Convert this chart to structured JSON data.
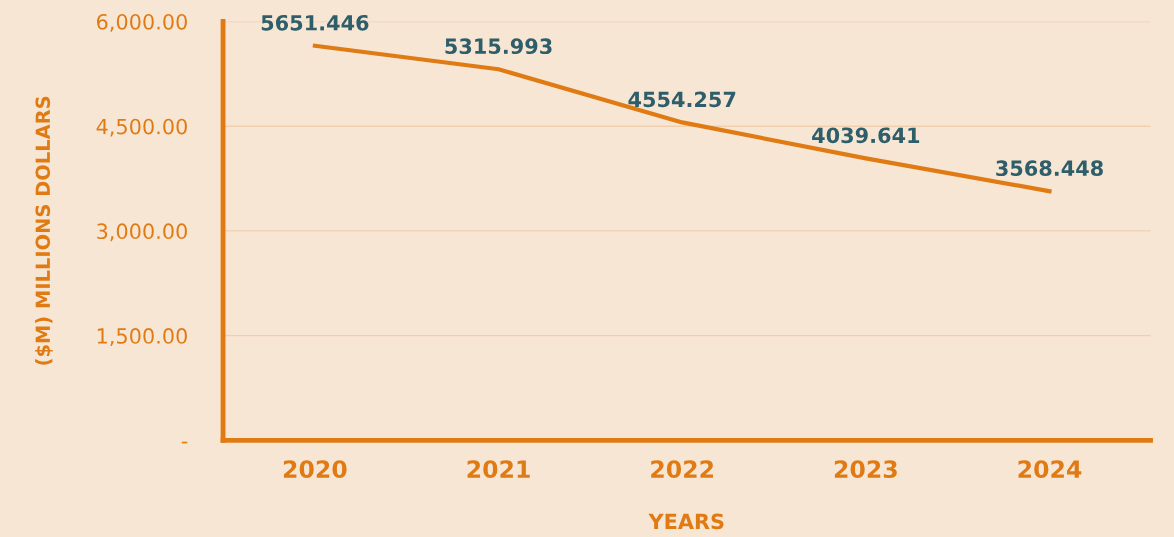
{
  "chart_data": {
    "type": "line",
    "xlabel": "YEARS",
    "ylabel": "($M) MILLIONS DOLLARS",
    "categories": [
      "2020",
      "2021",
      "2022",
      "2023",
      "2024"
    ],
    "series": [
      {
        "color": "#e07b14",
        "values": [
          5651.446,
          5315.993,
          4554.257,
          4039.641,
          3568.448
        ]
      }
    ],
    "ylim": [
      0,
      6000
    ],
    "yticks": [
      {
        "value": 0,
        "label": "-"
      },
      {
        "value": 1500,
        "label": "1,500.00"
      },
      {
        "value": 3000,
        "label": "3,000.00"
      },
      {
        "value": 4500,
        "label": "4,500.00"
      },
      {
        "value": 6000,
        "label": "6,000.00"
      }
    ],
    "grid": "y",
    "data_labels": true,
    "marker": "none",
    "line_style": "solid",
    "legend": false
  }
}
